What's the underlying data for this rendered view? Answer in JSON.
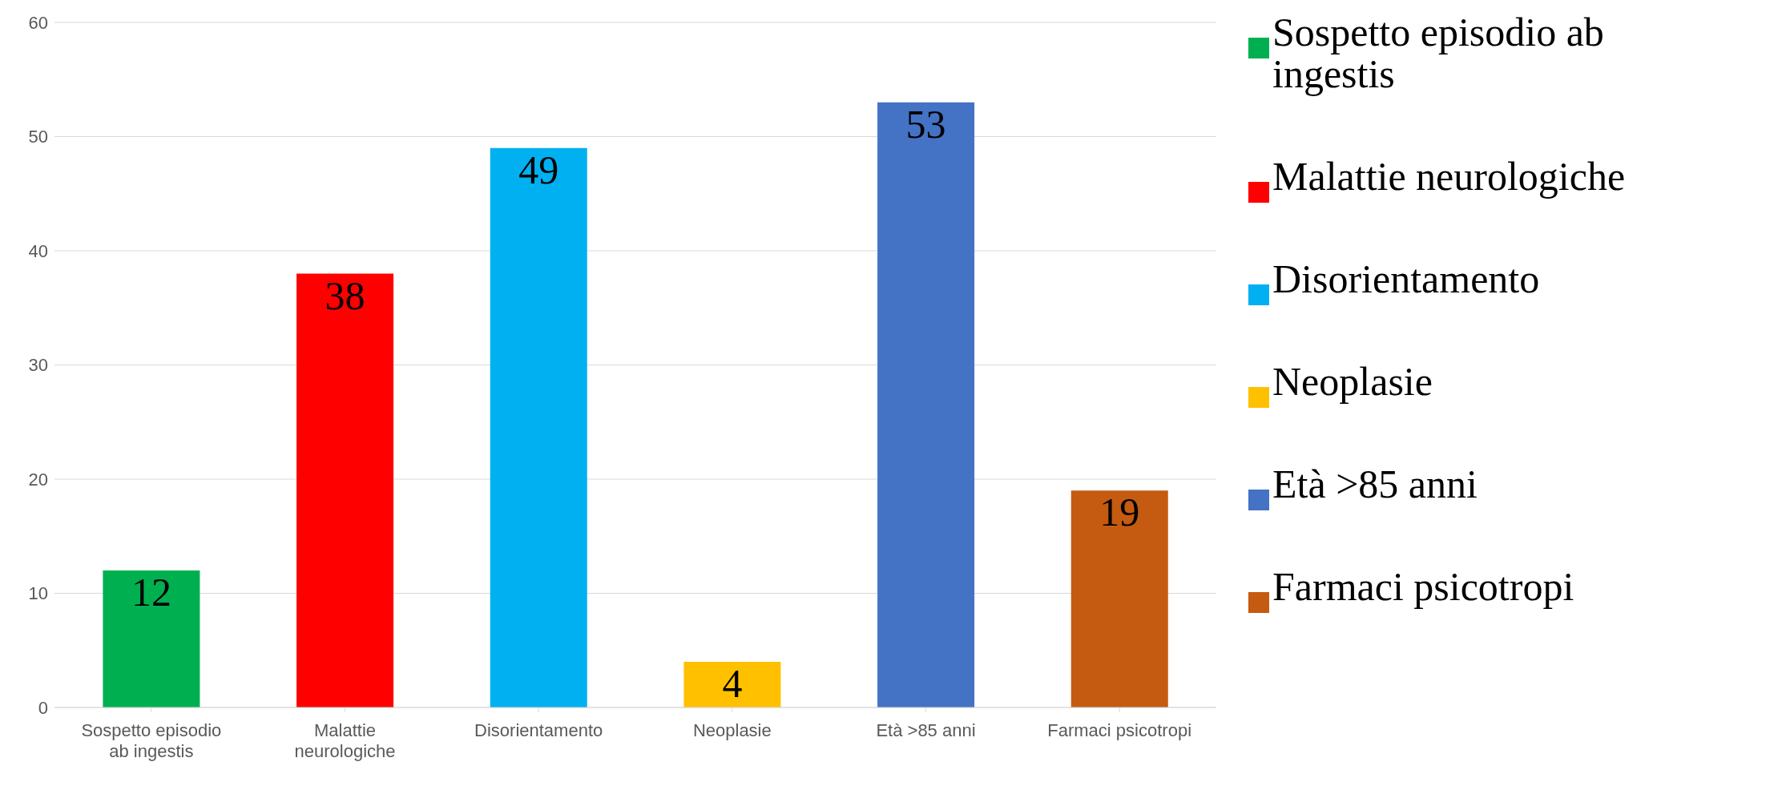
{
  "chart_data": {
    "type": "bar",
    "categories": [
      "Sospetto episodio ab ingestis",
      "Malattie neurologiche",
      "Disorientamento",
      "Neoplasie",
      "Età >85 anni",
      "Farmaci psicotropi"
    ],
    "series": [
      {
        "name": "Sospetto episodio ab ingestis",
        "color": "#00b050",
        "values": [
          12,
          null,
          null,
          null,
          null,
          null
        ]
      },
      {
        "name": "Malattie neurologiche",
        "color": "#ff0000",
        "values": [
          null,
          38,
          null,
          null,
          null,
          null
        ]
      },
      {
        "name": "Disorientamento",
        "color": "#00b0f0",
        "values": [
          null,
          null,
          49,
          null,
          null,
          null
        ]
      },
      {
        "name": "Neoplasie",
        "color": "#ffc000",
        "values": [
          null,
          null,
          null,
          4,
          null,
          null
        ]
      },
      {
        "name": "Età >85 anni",
        "color": "#4472c4",
        "values": [
          null,
          null,
          null,
          null,
          53,
          null
        ]
      },
      {
        "name": "Farmaci psicotropi",
        "color": "#c55a11",
        "values": [
          null,
          null,
          null,
          null,
          null,
          19
        ]
      }
    ],
    "stacked": true,
    "ylim": [
      0,
      60
    ],
    "yticks": [
      0,
      10,
      20,
      30,
      40,
      50,
      60
    ],
    "grid": "y",
    "legend": "right",
    "data_labels": true
  }
}
